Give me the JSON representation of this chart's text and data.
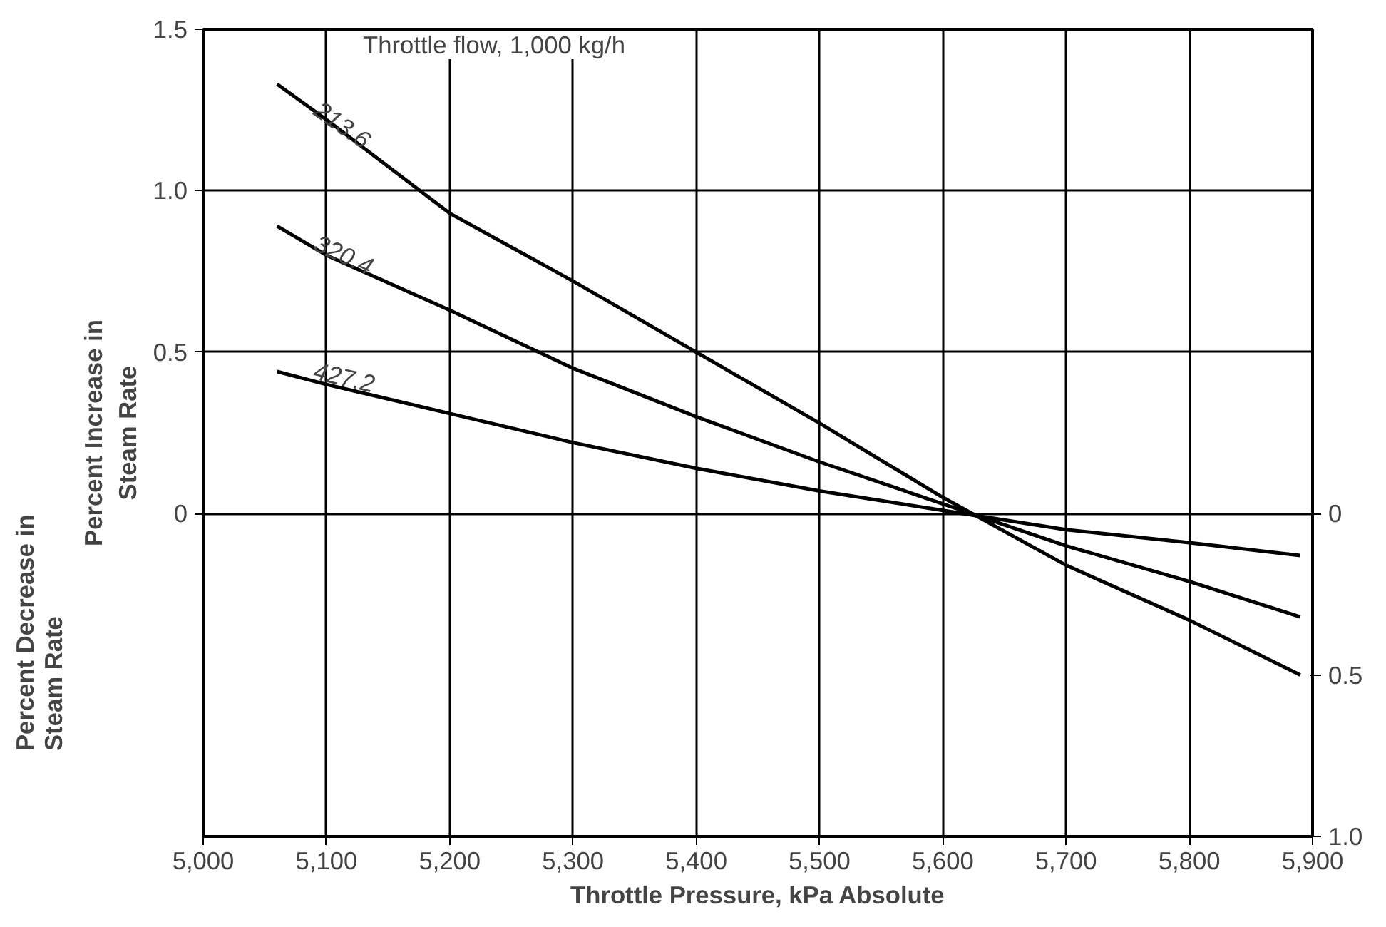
{
  "chart_data": {
    "type": "line",
    "xlabel": "Throttle Pressure, kPa Absolute",
    "ylabel": "Percent Increase in Steam Rate",
    "legend_title": "Throttle flow, 1,000 kg/h",
    "annotations": [
      "Percent Decrease in Steam Rate"
    ],
    "x": [
      5060,
      5100,
      5200,
      5300,
      5400,
      5500,
      5600,
      5700,
      5800,
      5890
    ],
    "series": [
      {
        "name": "213.6",
        "color": "#000000",
        "values": [
          1.33,
          1.22,
          0.93,
          0.72,
          0.5,
          0.28,
          0.05,
          -0.16,
          -0.33,
          -0.5
        ]
      },
      {
        "name": "320.4",
        "color": "#000000",
        "values": [
          0.89,
          0.8,
          0.63,
          0.45,
          0.3,
          0.16,
          0.03,
          -0.1,
          -0.21,
          -0.32
        ]
      },
      {
        "name": "427.2",
        "color": "#000000",
        "values": [
          0.44,
          0.4,
          0.31,
          0.22,
          0.14,
          0.07,
          0.01,
          -0.05,
          -0.09,
          -0.13
        ]
      }
    ],
    "xlim": [
      5000,
      5900
    ],
    "xticks": [
      {
        "value": 5000,
        "label": "5,000"
      },
      {
        "value": 5100,
        "label": "5,100"
      },
      {
        "value": 5200,
        "label": "5,200"
      },
      {
        "value": 5300,
        "label": "5,300"
      },
      {
        "value": 5400,
        "label": "5,400"
      },
      {
        "value": 5500,
        "label": "5,500"
      },
      {
        "value": 5600,
        "label": "5,600"
      },
      {
        "value": 5700,
        "label": "5,700"
      },
      {
        "value": 5800,
        "label": "5,800"
      },
      {
        "value": 5900,
        "label": "5,900"
      }
    ],
    "ylim": [
      -1.0,
      1.5
    ],
    "yticks": [
      0,
      0.5,
      {
        "value": 1,
        "label": "1.0"
      },
      1.5
    ],
    "y2lim": [
      -1.0,
      1.5
    ],
    "y2ticks": [
      {
        "value": 0,
        "label": "0"
      },
      {
        "value": -0.5,
        "label": "0.5"
      },
      {
        "value": -1,
        "label": "1.0"
      }
    ],
    "grid": true,
    "legend": false,
    "marker": "none",
    "line_style": "solid"
  }
}
